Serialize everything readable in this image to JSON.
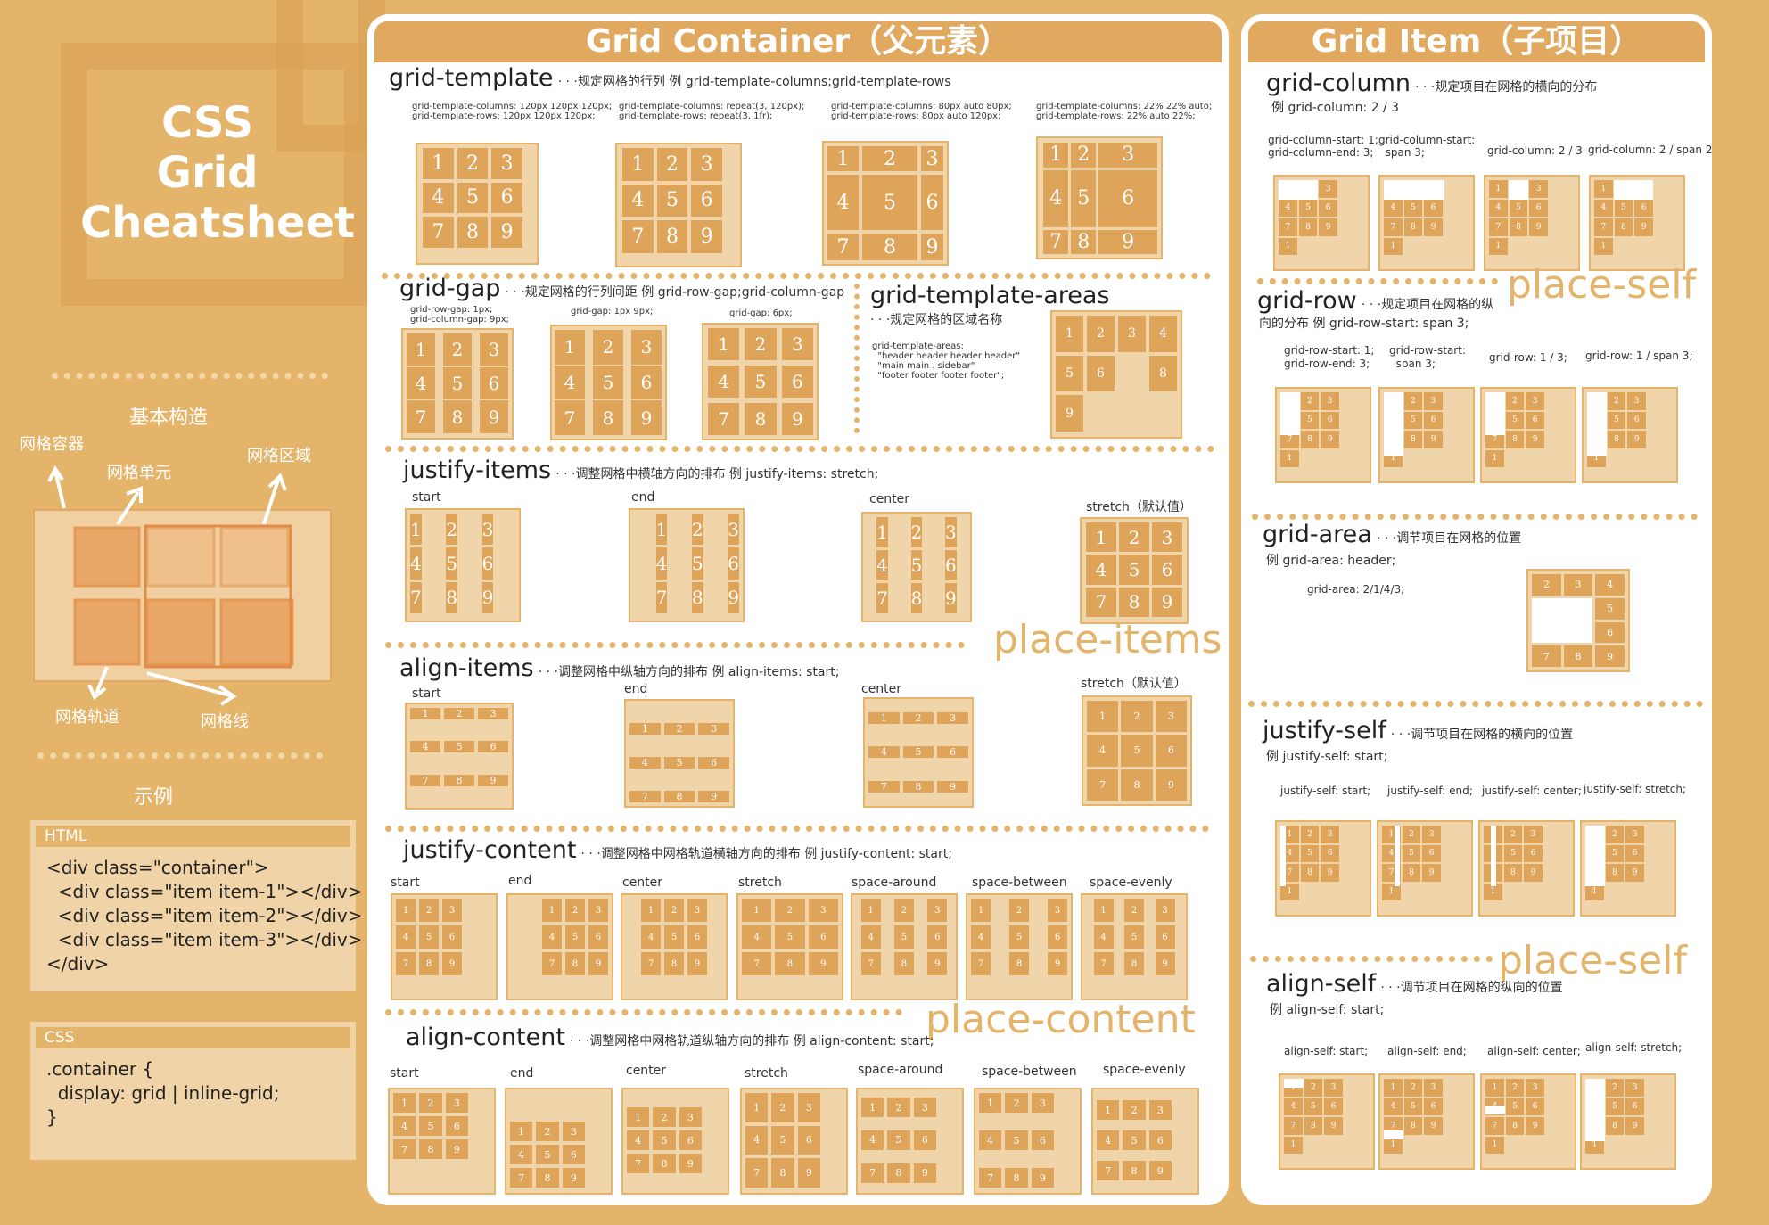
{
  "left": {
    "title_lines": [
      "CSS",
      "Grid",
      "Cheatsheet"
    ],
    "basic_heading": "基本构造",
    "labels": {
      "container": "网格容器",
      "cell": "网格单元",
      "area": "网格区域",
      "track": "网格轨道",
      "line": "网格线"
    },
    "example_heading": "示例",
    "html_box": {
      "header": "HTML",
      "code": "<div class=\"container\">\n  <div class=\"item item-1\"></div>\n  <div class=\"item item-2\"></div>\n  <div class=\"item item-3\"></div>\n</div>"
    },
    "css_box": {
      "header": "CSS",
      "code": ".container {\n  display: grid | inline-grid;\n}"
    }
  },
  "container_panel": {
    "title": "Grid Container（父元素）",
    "grid_template": {
      "name": "grid-template",
      "desc": "· · ·规定网格的行列  例  grid-template-columns;grid-template-rows",
      "captions": [
        "grid-template-columns: 120px 120px 120px;\ngrid-template-rows: 120px 120px 120px;",
        "grid-template-columns: repeat(3, 120px);\ngrid-template-rows: repeat(3, 1fr);",
        "grid-template-columns: 80px auto 80px;\ngrid-template-rows: 80px auto 120px;",
        "grid-template-columns: 22% 22% auto;\ngrid-template-rows: 22% auto 22%;"
      ]
    },
    "grid_gap": {
      "name": "grid-gap",
      "desc": "· · ·规定网格的行列间距  例  grid-row-gap;grid-column-gap",
      "captions": [
        "grid-row-gap: 1px;\ngrid-column-gap: 9px;",
        "grid-gap: 1px 9px;",
        "grid-gap: 6px;"
      ]
    },
    "grid_template_areas": {
      "name": "grid-template-areas",
      "desc": "· · ·规定网格的区域名称",
      "code": "grid-template-areas:\n  \"header header header header\"\n  \"main main . sidebar\"\n  \"footer footer footer footer\";"
    },
    "justify_items": {
      "name": "justify-items",
      "desc": "· · ·调整网格中横轴方向的排布  例  justify-items: stretch;",
      "labels": [
        "start",
        "end",
        "center",
        "stretch（默认值）"
      ]
    },
    "place_items": "place-items",
    "align_items": {
      "name": "align-items",
      "desc": "· · ·调整网格中纵轴方向的排布  例  align-items: start;",
      "labels": [
        "start",
        "end",
        "center",
        "stretch（默认值）"
      ]
    },
    "justify_content": {
      "name": "justify-content",
      "desc": "· · ·调整网格中网格轨道横轴方向的排布  例  justify-content: start;",
      "labels": [
        "start",
        "end",
        "center",
        "stretch",
        "space-around",
        "space-between",
        "space-evenly"
      ]
    },
    "place_content": "place-content",
    "align_content": {
      "name": "align-content",
      "desc": "· · ·调整网格中网格轨道纵轴方向的排布  例 align-content: start;",
      "labels": [
        "start",
        "end",
        "center",
        "stretch",
        "space-around",
        "space-between",
        "space-evenly"
      ]
    }
  },
  "item_panel": {
    "title": "Grid Item（子项目）",
    "grid_column": {
      "name": "grid-column",
      "desc": "· · ·规定项目在网格的横向的分布",
      "example": "例  grid-column: 2 / 3",
      "captions": [
        "grid-column-start: 1;\ngrid-column-end: 3;",
        "grid-column-start:\n  span 3;",
        "grid-column: 2 / 3",
        "grid-column: 2 / span 2"
      ]
    },
    "place_self_1": "place-self",
    "grid_row": {
      "name": "grid-row",
      "desc": "· · ·规定项目在网格的纵",
      "desc2": "向的分布  例  grid-row-start: span 3;",
      "captions": [
        "grid-row-start: 1;\ngrid-row-end: 3;",
        "grid-row-start:\n  span 3;",
        "grid-row: 1 / 3;",
        "grid-row: 1 / span 3;"
      ]
    },
    "grid_area": {
      "name": "grid-area",
      "desc": "· · ·调节项目在网格的位置",
      "example": "例  grid-area: header;",
      "caption": "grid-area: 2/1/4/3;"
    },
    "justify_self": {
      "name": "justify-self",
      "desc": "· · ·调节项目在网格的横向的位置",
      "example": "例  justify-self: start;",
      "captions": [
        "justify-self: start;",
        "justify-self: end;",
        "justify-self: center;",
        "justify-self: stretch;"
      ]
    },
    "place_self_2": "place-self",
    "align_self": {
      "name": "align-self",
      "desc": "· · ·调节项目在网格的纵向的位置",
      "example": "例  align-self: start;",
      "captions": [
        "align-self: start;",
        "align-self: end;",
        "align-self: center;",
        "align-self: stretch;"
      ]
    }
  },
  "grid_numbers": [
    "1",
    "2",
    "3",
    "4",
    "5",
    "6",
    "7",
    "8",
    "9"
  ],
  "colors": {
    "background": "#e5b46b",
    "cell": "#dea45a",
    "box": "#f0d5ab",
    "accent_text": "#e5b46b"
  }
}
